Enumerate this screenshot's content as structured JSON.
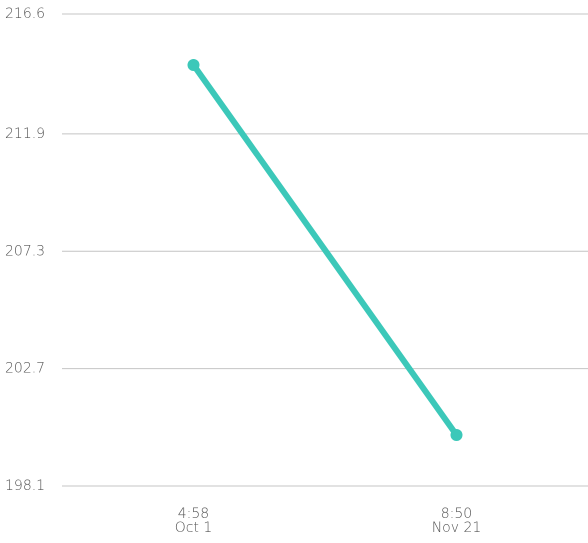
{
  "chart_data": {
    "type": "line",
    "categories": [
      [
        "4:58",
        "Oct 1"
      ],
      [
        "8:50",
        "Nov 21"
      ]
    ],
    "series": [
      {
        "color": "#3cc8b9",
        "values": [
          214.6,
          200.1
        ]
      }
    ],
    "ylim": [
      198.1,
      216.6
    ],
    "yticks": [
      198.1,
      202.7,
      207.3,
      211.9,
      216.6
    ],
    "grid": true
  }
}
